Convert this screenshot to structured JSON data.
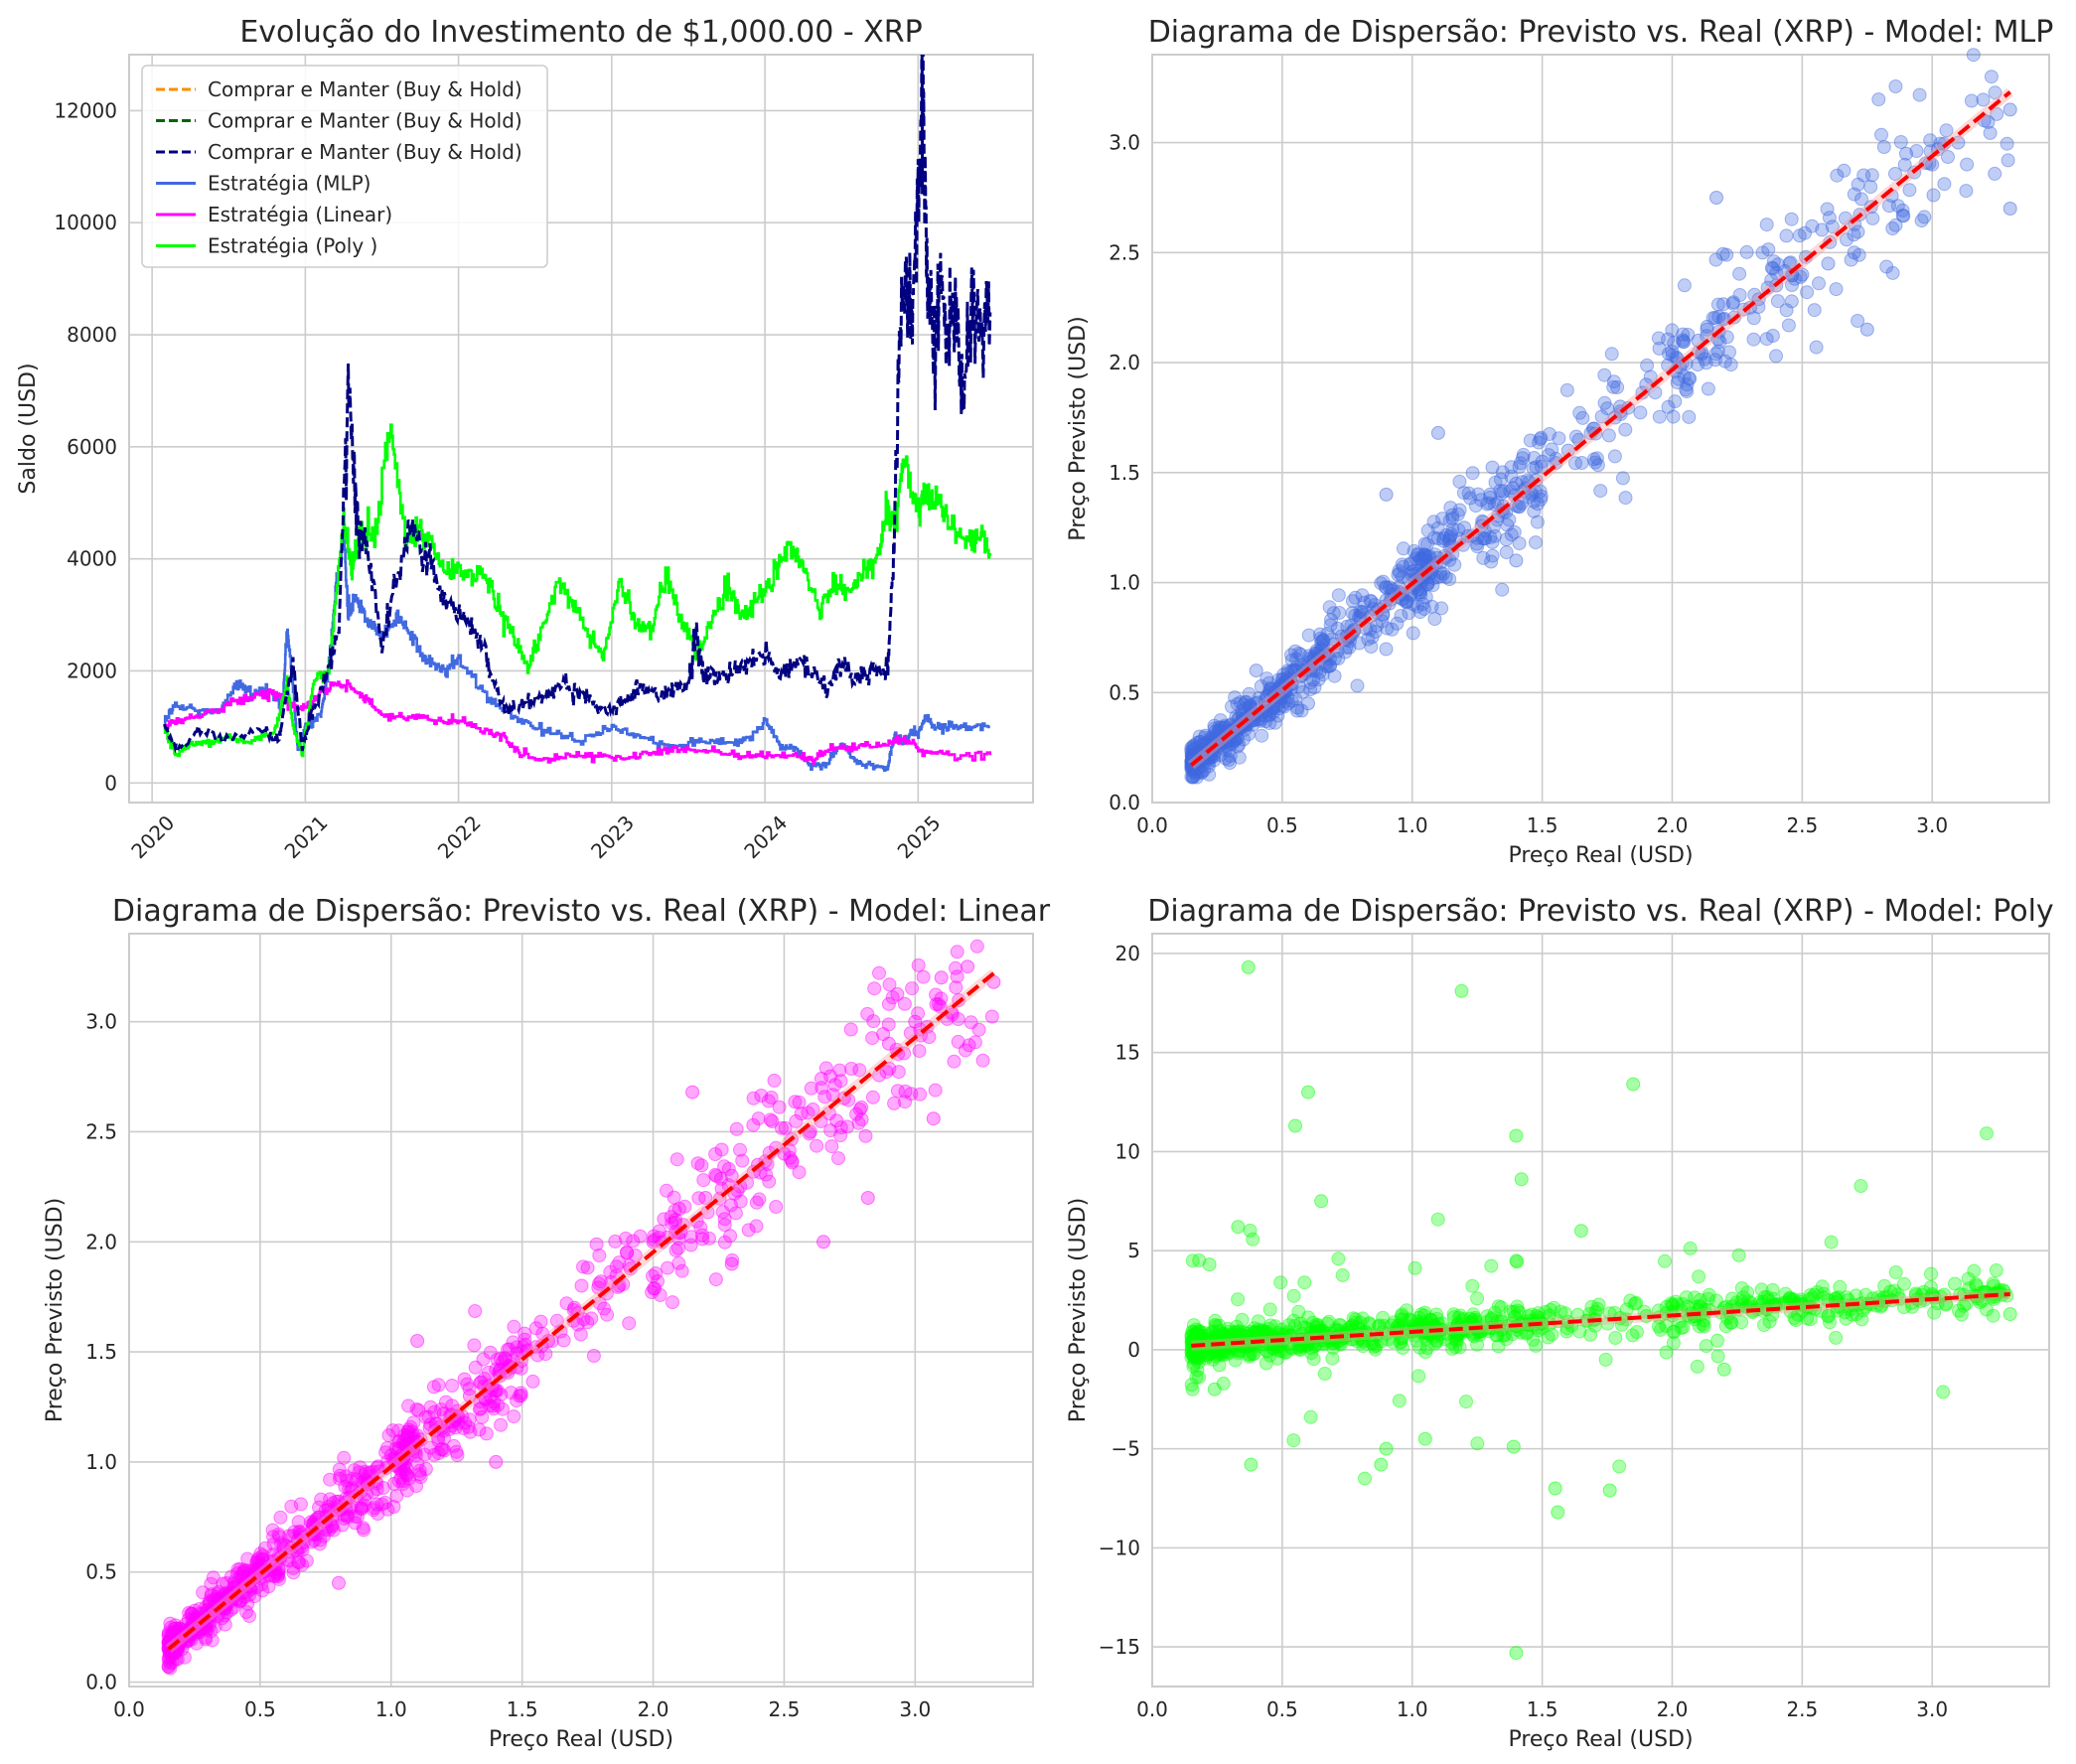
{
  "colors": {
    "grid": "#cccccc",
    "axes_edge": "#cccccc",
    "bh_orange": "#ff8c00",
    "bh_green": "#006400",
    "bh_navy": "#000080",
    "mlp": "#4169e1",
    "linear": "#ff00ff",
    "poly": "#00ff00",
    "fit_line": "#ff0000"
  },
  "chart_data": [
    {
      "type": "line",
      "title": "Evolução do Investimento de $1,000.00 - XRP",
      "xlabel": "",
      "ylabel": "Saldo (USD)",
      "xlim": [
        2019.85,
        2025.75
      ],
      "ylim": [
        -350,
        13000
      ],
      "xticks": [
        2020,
        2021,
        2022,
        2023,
        2024,
        2025
      ],
      "xtick_labels": [
        "2020",
        "2021",
        "2022",
        "2023",
        "2024",
        "2025"
      ],
      "yticks": [
        0,
        2000,
        4000,
        6000,
        8000,
        10000,
        12000
      ],
      "ytick_labels": [
        "0",
        "2000",
        "4000",
        "6000",
        "8000",
        "10000",
        "12000"
      ],
      "grid": true,
      "legend": "upper left",
      "series": [
        {
          "name": "Comprar e Manter (Buy & Hold)",
          "color_key": "bh_orange",
          "dash": true,
          "style": "dashed",
          "x": [],
          "y": []
        },
        {
          "name": "Comprar e Manter (Buy & Hold)",
          "color_key": "bh_green",
          "dash": true,
          "style": "dashed",
          "x": [],
          "y": []
        },
        {
          "name": "Comprar e Manter (Buy & Hold)",
          "color_key": "bh_navy",
          "dash": true,
          "style": "dashed",
          "x": [
            2020.08,
            2020.17,
            2020.3,
            2020.5,
            2020.7,
            2020.83,
            2020.88,
            2020.92,
            2020.98,
            2021.05,
            2021.15,
            2021.22,
            2021.28,
            2021.32,
            2021.35,
            2021.4,
            2021.5,
            2021.6,
            2021.7,
            2021.8,
            2021.9,
            2022.0,
            2022.1,
            2022.2,
            2022.3,
            2022.4,
            2022.5,
            2022.6,
            2022.7,
            2022.8,
            2022.9,
            2023.0,
            2023.1,
            2023.2,
            2023.3,
            2023.4,
            2023.5,
            2023.55,
            2023.6,
            2023.7,
            2023.8,
            2023.9,
            2024.0,
            2024.1,
            2024.2,
            2024.3,
            2024.4,
            2024.5,
            2024.6,
            2024.7,
            2024.8,
            2024.84,
            2024.88,
            2024.92,
            2024.96,
            2025.0,
            2025.03,
            2025.06,
            2025.1,
            2025.15,
            2025.2,
            2025.25,
            2025.3,
            2025.35,
            2025.4,
            2025.47
          ],
          "y": [
            1050,
            600,
            900,
            800,
            900,
            800,
            1600,
            2100,
            600,
            1300,
            2000,
            2900,
            7000,
            5500,
            4300,
            4300,
            2500,
            3600,
            4700,
            4000,
            3300,
            3000,
            2700,
            2100,
            1300,
            1400,
            1500,
            1600,
            1800,
            1600,
            1400,
            1300,
            1500,
            1700,
            1500,
            1700,
            1800,
            2700,
            1900,
            1900,
            2000,
            2200,
            2300,
            1900,
            2200,
            2000,
            1700,
            2100,
            1900,
            2000,
            2000,
            4000,
            8200,
            9000,
            8300,
            10500,
            12400,
            9000,
            7500,
            9000,
            8000,
            8500,
            7000,
            8500,
            8000,
            8400
          ]
        },
        {
          "name": "Estratégia (MLP)",
          "color_key": "mlp",
          "dash": false,
          "style": "solid",
          "x": [
            2020.08,
            2020.15,
            2020.3,
            2020.45,
            2020.55,
            2020.65,
            2020.75,
            2020.85,
            2020.88,
            2020.92,
            2020.95,
            2021.0,
            2021.1,
            2021.15,
            2021.2,
            2021.25,
            2021.28,
            2021.32,
            2021.4,
            2021.5,
            2021.6,
            2021.7,
            2021.8,
            2021.9,
            2022.0,
            2022.2,
            2022.4,
            2022.6,
            2022.8,
            2023.0,
            2023.2,
            2023.4,
            2023.6,
            2023.8,
            2023.9,
            2024.0,
            2024.1,
            2024.2,
            2024.3,
            2024.4,
            2024.5,
            2024.6,
            2024.7,
            2024.8,
            2024.85,
            2024.9,
            2024.95,
            2025.0,
            2025.05,
            2025.1,
            2025.2,
            2025.3,
            2025.47
          ],
          "y": [
            1100,
            1400,
            1300,
            1300,
            1800,
            1600,
            1700,
            1300,
            2800,
            1700,
            600,
            1000,
            1200,
            2000,
            3500,
            4500,
            3000,
            3300,
            2900,
            2600,
            3000,
            2600,
            2200,
            2000,
            2200,
            1500,
            1100,
            900,
            750,
            1000,
            800,
            650,
            750,
            700,
            800,
            1100,
            650,
            600,
            300,
            350,
            700,
            350,
            300,
            300,
            900,
            700,
            900,
            900,
            1200,
            1000,
            1000,
            1000,
            1000
          ]
        },
        {
          "name": "Estratégia (Linear)",
          "color_key": "linear",
          "dash": false,
          "style": "solid",
          "x": [
            2020.08,
            2020.15,
            2020.3,
            2020.5,
            2020.7,
            2020.8,
            2020.9,
            2021.0,
            2021.1,
            2021.2,
            2021.3,
            2021.4,
            2021.5,
            2021.7,
            2021.9,
            2022.0,
            2022.2,
            2022.3,
            2022.4,
            2022.6,
            2022.8,
            2023.0,
            2023.2,
            2023.4,
            2023.6,
            2023.8,
            2024.0,
            2024.2,
            2024.3,
            2024.4,
            2024.6,
            2024.8,
            2024.9,
            2025.0,
            2025.2,
            2025.47
          ],
          "y": [
            1000,
            1100,
            1200,
            1400,
            1600,
            1600,
            1400,
            1300,
            1600,
            1800,
            1700,
            1500,
            1200,
            1200,
            1100,
            1100,
            900,
            800,
            500,
            400,
            500,
            450,
            500,
            600,
            600,
            500,
            500,
            500,
            400,
            600,
            650,
            700,
            800,
            600,
            500,
            500
          ]
        },
        {
          "name": "Estratégia (Poly )",
          "color_key": "poly",
          "dash": false,
          "style": "solid",
          "x": [
            2020.08,
            2020.15,
            2020.25,
            2020.35,
            2020.5,
            2020.65,
            2020.8,
            2020.88,
            2020.92,
            2020.98,
            2021.05,
            2021.15,
            2021.25,
            2021.3,
            2021.35,
            2021.45,
            2021.55,
            2021.65,
            2021.75,
            2021.85,
            2021.95,
            2022.05,
            2022.15,
            2022.25,
            2022.35,
            2022.45,
            2022.55,
            2022.65,
            2022.75,
            2022.85,
            2022.95,
            2023.05,
            2023.15,
            2023.25,
            2023.35,
            2023.45,
            2023.55,
            2023.65,
            2023.75,
            2023.85,
            2023.95,
            2024.05,
            2024.15,
            2024.25,
            2024.35,
            2024.45,
            2024.55,
            2024.65,
            2024.75,
            2024.8,
            2024.85,
            2024.9,
            2025.0,
            2025.05,
            2025.1,
            2025.2,
            2025.3,
            2025.4,
            2025.47
          ],
          "y": [
            1000,
            500,
            700,
            700,
            800,
            750,
            900,
            1800,
            1000,
            500,
            1800,
            2000,
            4800,
            3800,
            4500,
            4300,
            6400,
            4400,
            4500,
            4100,
            3800,
            3700,
            3800,
            3200,
            2700,
            2000,
            2800,
            3600,
            3200,
            2600,
            2300,
            3700,
            2800,
            2700,
            3700,
            2900,
            2300,
            2900,
            3500,
            3000,
            3300,
            3700,
            4200,
            3900,
            3000,
            3600,
            3400,
            3800,
            4100,
            5000,
            4500,
            5800,
            4800,
            5300,
            5000,
            4800,
            4300,
            4400,
            4100
          ]
        }
      ]
    },
    {
      "type": "scatter",
      "title": "Diagrama de Dispersão: Previsto vs. Real (XRP)  - Model: MLP",
      "xlabel": "Preço Real (USD)",
      "ylabel": "Preço Previsto (USD)",
      "xlim": [
        0.0,
        3.45
      ],
      "ylim": [
        0.0,
        3.4
      ],
      "xticks": [
        0.0,
        0.5,
        1.0,
        1.5,
        2.0,
        2.5,
        3.0
      ],
      "xtick_labels": [
        "0.0",
        "0.5",
        "1.0",
        "1.5",
        "2.0",
        "2.5",
        "3.0"
      ],
      "yticks": [
        0.0,
        0.5,
        1.0,
        1.5,
        2.0,
        2.5,
        3.0
      ],
      "ytick_labels": [
        "0.0",
        "0.5",
        "1.0",
        "1.5",
        "2.0",
        "2.5",
        "3.0"
      ],
      "grid": true,
      "color_key": "mlp",
      "x": [
        0.16,
        0.2,
        0.25,
        0.3,
        0.35,
        0.4,
        0.45,
        0.5,
        0.55,
        0.6,
        0.65,
        0.7,
        0.75,
        0.8,
        0.85,
        0.9,
        0.95,
        1.0,
        1.05,
        1.1,
        1.15,
        1.2,
        1.3,
        1.4,
        1.5,
        1.6,
        1.7,
        1.8,
        1.9,
        2.0,
        2.1,
        2.2,
        2.3,
        2.4,
        2.5,
        2.6,
        2.7,
        2.9,
        3.0,
        3.1,
        3.2,
        3.3,
        0.4,
        0.6,
        0.9,
        1.1,
        1.4,
        2.17,
        2.75,
        3.3
      ],
      "y": [
        0.19,
        0.22,
        0.3,
        0.35,
        0.38,
        0.45,
        0.5,
        0.53,
        0.6,
        0.62,
        0.7,
        0.72,
        0.8,
        0.85,
        0.88,
        0.92,
        0.98,
        1.05,
        1.1,
        1.2,
        1.22,
        1.25,
        1.4,
        1.45,
        1.55,
        1.6,
        1.7,
        1.8,
        1.9,
        2.05,
        2.1,
        2.2,
        2.25,
        2.35,
        2.4,
        2.45,
        2.5,
        2.95,
        2.9,
        3.0,
        3.1,
        3.15,
        0.6,
        0.45,
        1.4,
        1.68,
        1.1,
        2.75,
        2.15,
        2.7
      ],
      "fit": {
        "x": [
          0.15,
          3.3
        ],
        "y": [
          0.17,
          3.23
        ],
        "color_key": "fit_line"
      }
    },
    {
      "type": "scatter",
      "title": "Diagrama de Dispersão: Previsto vs. Real (XRP)  - Model: Linear",
      "xlabel": "Preço Real (USD)",
      "ylabel": "Preço Previsto (USD)",
      "xlim": [
        0.0,
        3.45
      ],
      "ylim": [
        -0.02,
        3.4
      ],
      "xticks": [
        0.0,
        0.5,
        1.0,
        1.5,
        2.0,
        2.5,
        3.0
      ],
      "xtick_labels": [
        "0.0",
        "0.5",
        "1.0",
        "1.5",
        "2.0",
        "2.5",
        "3.0"
      ],
      "yticks": [
        0.0,
        0.5,
        1.0,
        1.5,
        2.0,
        2.5,
        3.0
      ],
      "ytick_labels": [
        "0.0",
        "0.5",
        "1.0",
        "1.5",
        "2.0",
        "2.5",
        "3.0"
      ],
      "grid": true,
      "color_key": "linear",
      "x": [
        0.16,
        0.2,
        0.25,
        0.3,
        0.35,
        0.4,
        0.45,
        0.5,
        0.55,
        0.6,
        0.65,
        0.7,
        0.75,
        0.8,
        0.85,
        0.9,
        0.95,
        1.0,
        1.05,
        1.1,
        1.15,
        1.2,
        1.3,
        1.4,
        1.5,
        1.6,
        1.7,
        1.8,
        1.9,
        2.0,
        2.1,
        2.2,
        2.3,
        2.4,
        2.5,
        2.6,
        2.7,
        2.9,
        3.0,
        3.1,
        3.2,
        3.3,
        0.8,
        1.1,
        1.4,
        2.65,
        2.82,
        3.07,
        2.15,
        2.3
      ],
      "y": [
        0.19,
        0.22,
        0.28,
        0.33,
        0.38,
        0.43,
        0.48,
        0.53,
        0.58,
        0.62,
        0.68,
        0.72,
        0.78,
        0.82,
        0.88,
        0.92,
        0.98,
        1.03,
        1.08,
        1.12,
        1.17,
        1.22,
        1.3,
        1.42,
        1.5,
        1.55,
        1.7,
        1.82,
        1.95,
        2.0,
        2.15,
        2.2,
        2.3,
        2.35,
        2.4,
        2.5,
        2.55,
        2.9,
        3.0,
        3.2,
        3.25,
        3.18,
        0.45,
        1.55,
        1.0,
        2.0,
        2.2,
        2.56,
        2.68,
        1.9
      ],
      "fit": {
        "x": [
          0.15,
          3.3
        ],
        "y": [
          0.15,
          3.22
        ],
        "color_key": "fit_line"
      }
    },
    {
      "type": "scatter",
      "title": "Diagrama de Dispersão: Previsto vs. Real (XRP)  - Model: Poly",
      "xlabel": "Preço Real (USD)",
      "ylabel": "Preço Previsto (USD)",
      "xlim": [
        0.0,
        3.45
      ],
      "ylim": [
        -17,
        21
      ],
      "xticks": [
        0.0,
        0.5,
        1.0,
        1.5,
        2.0,
        2.5,
        3.0
      ],
      "xtick_labels": [
        "0.0",
        "0.5",
        "1.0",
        "1.5",
        "2.0",
        "2.5",
        "3.0"
      ],
      "yticks": [
        -15,
        -10,
        -5,
        0,
        5,
        10,
        15,
        20
      ],
      "ytick_labels": [
        "−15",
        "−10",
        "−5",
        "0",
        "5",
        "10",
        "15",
        "20"
      ],
      "grid": true,
      "color_key": "poly",
      "x": [
        0.2,
        0.3,
        0.4,
        0.5,
        0.6,
        0.7,
        0.8,
        0.9,
        1.0,
        1.1,
        1.2,
        1.3,
        1.4,
        1.5,
        1.6,
        1.7,
        1.8,
        1.9,
        2.0,
        2.1,
        2.2,
        2.3,
        2.4,
        2.5,
        2.6,
        2.8,
        3.0,
        3.2,
        3.3,
        0.37,
        1.19,
        1.85,
        0.6,
        0.55,
        1.4,
        0.33,
        1.42,
        1.65,
        0.22,
        0.65,
        1.39,
        1.55,
        1.76,
        0.38,
        0.88,
        1.05,
        1.56,
        0.24,
        0.9,
        2.2
      ],
      "y": [
        0.3,
        0.1,
        0.5,
        0.4,
        0.5,
        0.6,
        0.6,
        0.8,
        0.9,
        1.0,
        1.0,
        1.1,
        1.2,
        1.3,
        1.4,
        1.5,
        1.6,
        1.7,
        1.9,
        2.0,
        2.1,
        2.2,
        2.3,
        2.3,
        2.5,
        2.5,
        2.8,
        2.9,
        1.8,
        19.3,
        18.1,
        13.4,
        13.0,
        11.3,
        10.8,
        6.2,
        8.6,
        6.0,
        4.3,
        7.5,
        -4.9,
        -7.0,
        -7.1,
        -5.8,
        -5.8,
        -4.5,
        -8.2,
        -2.0,
        -5.0,
        -1.0
      ],
      "outlier_low": {
        "x": 1.4,
        "y": -15.3
      },
      "fit": {
        "x": [
          0.15,
          3.3
        ],
        "y": [
          0.2,
          2.8
        ],
        "color_key": "fit_line"
      }
    }
  ]
}
